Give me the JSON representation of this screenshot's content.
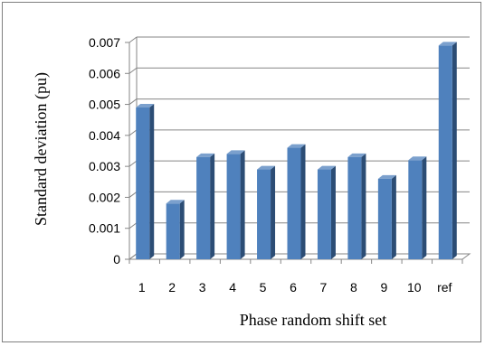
{
  "chart_data": {
    "type": "bar",
    "title": "",
    "xlabel": "Phase random shift set",
    "ylabel": "Standard deviation (pu)",
    "categories": [
      "1",
      "2",
      "3",
      "4",
      "5",
      "6",
      "7",
      "8",
      "9",
      "10",
      "ref"
    ],
    "values": [
      0.0049,
      0.0018,
      0.0033,
      0.0034,
      0.0029,
      0.0036,
      0.0029,
      0.0033,
      0.0026,
      0.0032,
      0.0069
    ],
    "ylim": [
      0,
      0.007
    ],
    "yticks": [
      "0",
      "0.001",
      "0.002",
      "0.003",
      "0.004",
      "0.005",
      "0.006",
      "0.007"
    ],
    "grid": true,
    "legend": "none",
    "style": "3d-column",
    "colors": {
      "bar_front": "#4f81bd",
      "bar_side": "#2c4d75",
      "bar_top": "#7ba0cd",
      "grid": "#868686",
      "axis": "#868686",
      "frame": "#7f7f7f"
    }
  }
}
